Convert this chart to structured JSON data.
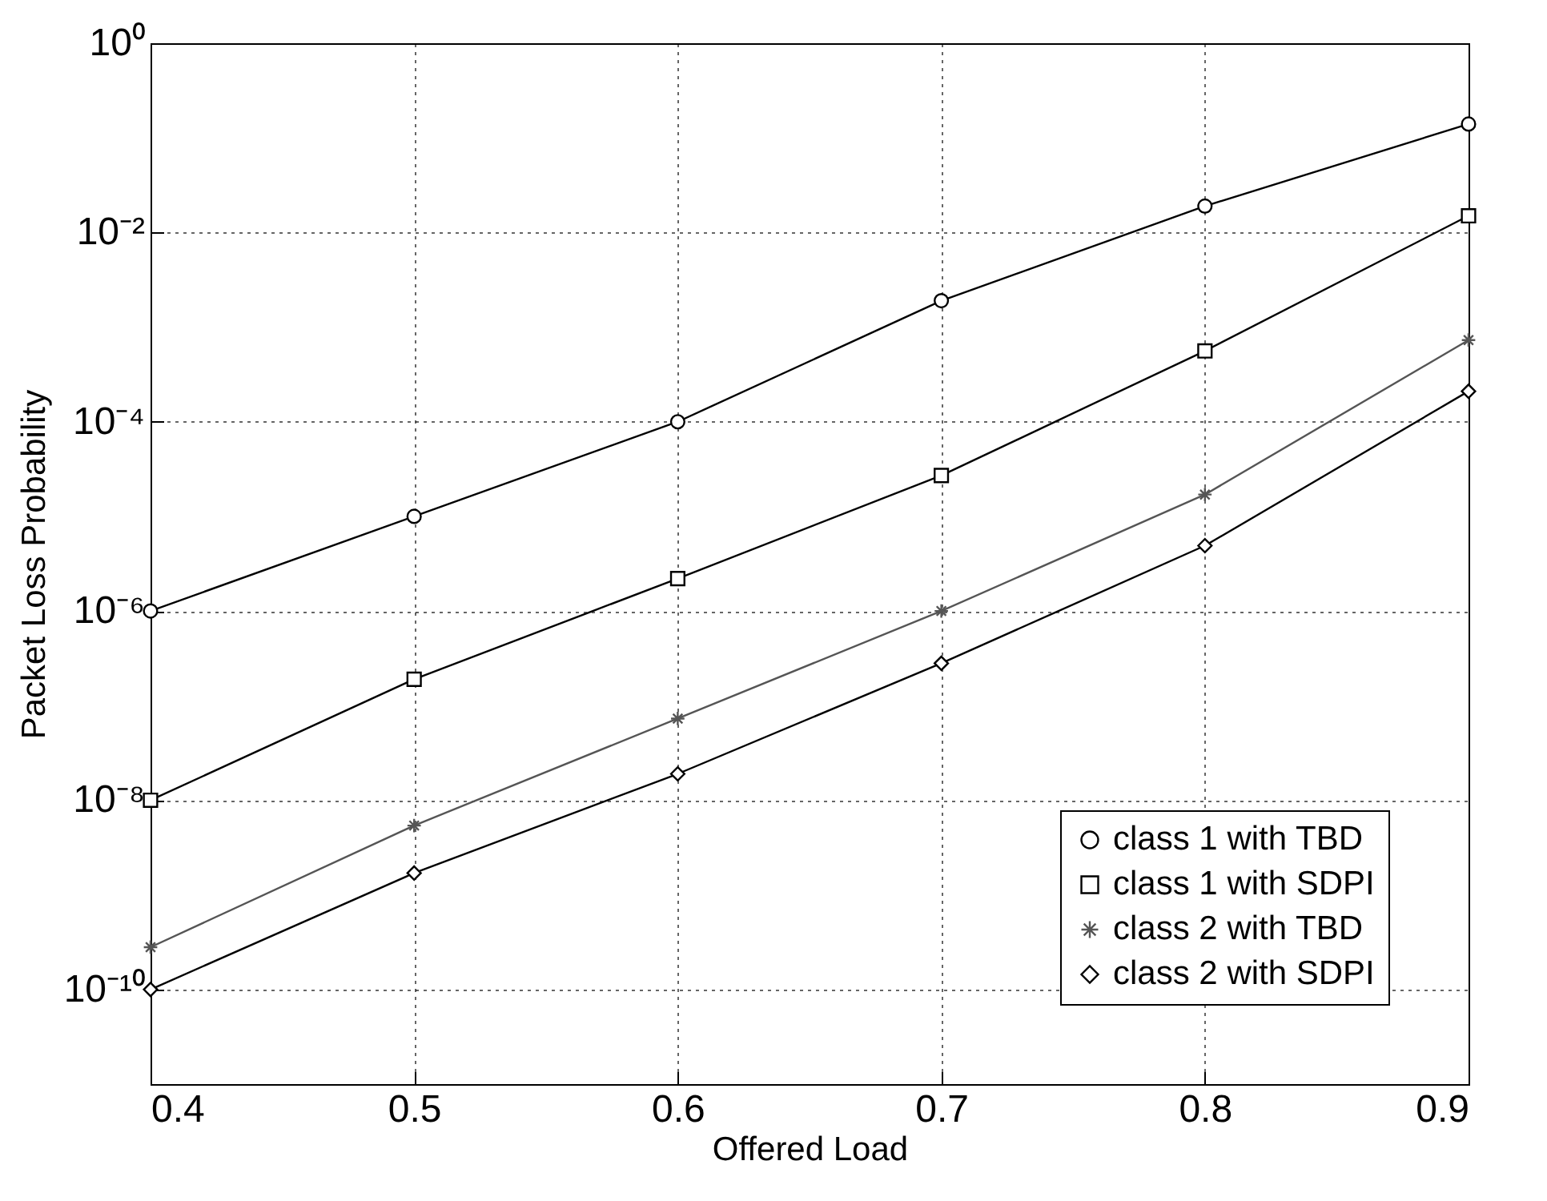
{
  "chart_data": {
    "type": "line",
    "xlabel": "Offered Load",
    "ylabel": "Packet Loss Probability",
    "x": [
      0.4,
      0.5,
      0.6,
      0.7,
      0.8,
      0.9
    ],
    "series": [
      {
        "name": "class 1 with TBD",
        "color": "#000000",
        "marker": "circle",
        "values": [
          1e-06,
          1e-05,
          0.0001,
          0.0019,
          0.019,
          0.14
        ]
      },
      {
        "name": "class 1 with SDPI",
        "color": "#000000",
        "marker": "square",
        "values": [
          1e-08,
          1.9e-07,
          2.2e-06,
          2.7e-05,
          0.00056,
          0.015
        ]
      },
      {
        "name": "class 2 with TBD",
        "color": "#555555",
        "marker": "cross",
        "values": [
          2.8e-10,
          5.4e-09,
          7.3e-08,
          1e-06,
          1.7e-05,
          0.00073
        ]
      },
      {
        "name": "class 2 with SDPI",
        "color": "#000000",
        "marker": "diamond",
        "values": [
          1e-10,
          1.7e-09,
          1.9e-08,
          2.8e-07,
          4.9e-06,
          0.00021
        ]
      }
    ],
    "log": "y",
    "xlim": [
      0.4,
      0.9
    ],
    "xticks": [
      0.4,
      0.5,
      0.6,
      0.7,
      0.8,
      0.9
    ],
    "ylim": [
      1e-11,
      1
    ],
    "yticks": [
      {
        "value": 1,
        "label": "10⁰"
      },
      {
        "value": 0.01,
        "label": "10⁻²"
      },
      {
        "value": 0.0001,
        "label": "10⁻⁴"
      },
      {
        "value": 1e-06,
        "label": "10⁻⁶"
      },
      {
        "value": 1e-08,
        "label": "10⁻⁸"
      },
      {
        "value": 1e-10,
        "label": "10⁻¹⁰"
      }
    ],
    "grid": true,
    "legend": "bottom right",
    "line_style": "solid"
  }
}
